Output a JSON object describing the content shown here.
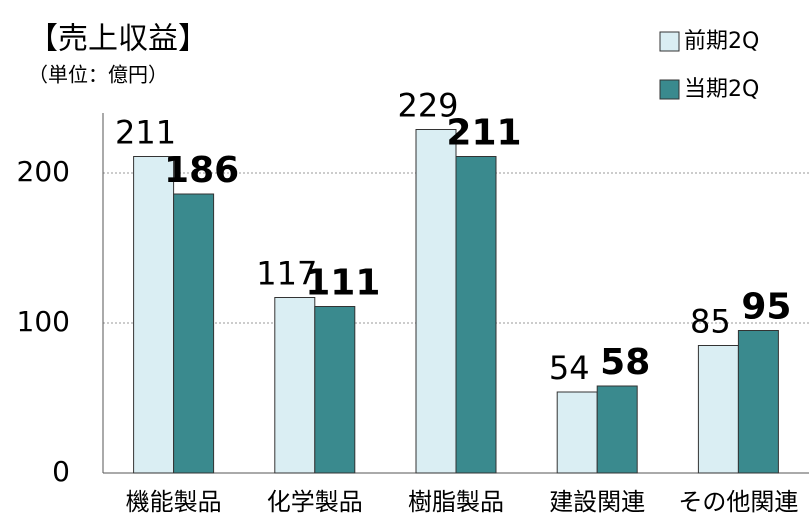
{
  "chart_data": {
    "type": "bar",
    "title": "【売上収益】",
    "subtitle": "（単位：億円）",
    "categories": [
      "機能製品",
      "化学製品",
      "樹脂製品",
      "建設関連",
      "その他関連"
    ],
    "series": [
      {
        "name": "前期2Q",
        "color": "#daeef3",
        "values": [
          211,
          117,
          229,
          54,
          85
        ]
      },
      {
        "name": "当期2Q",
        "color": "#3a8a8e",
        "values": [
          186,
          111,
          211,
          58,
          95
        ]
      }
    ],
    "ylim": [
      0,
      240
    ],
    "yticks": [
      0,
      100,
      200
    ],
    "grid": true,
    "legend": "top-right"
  }
}
